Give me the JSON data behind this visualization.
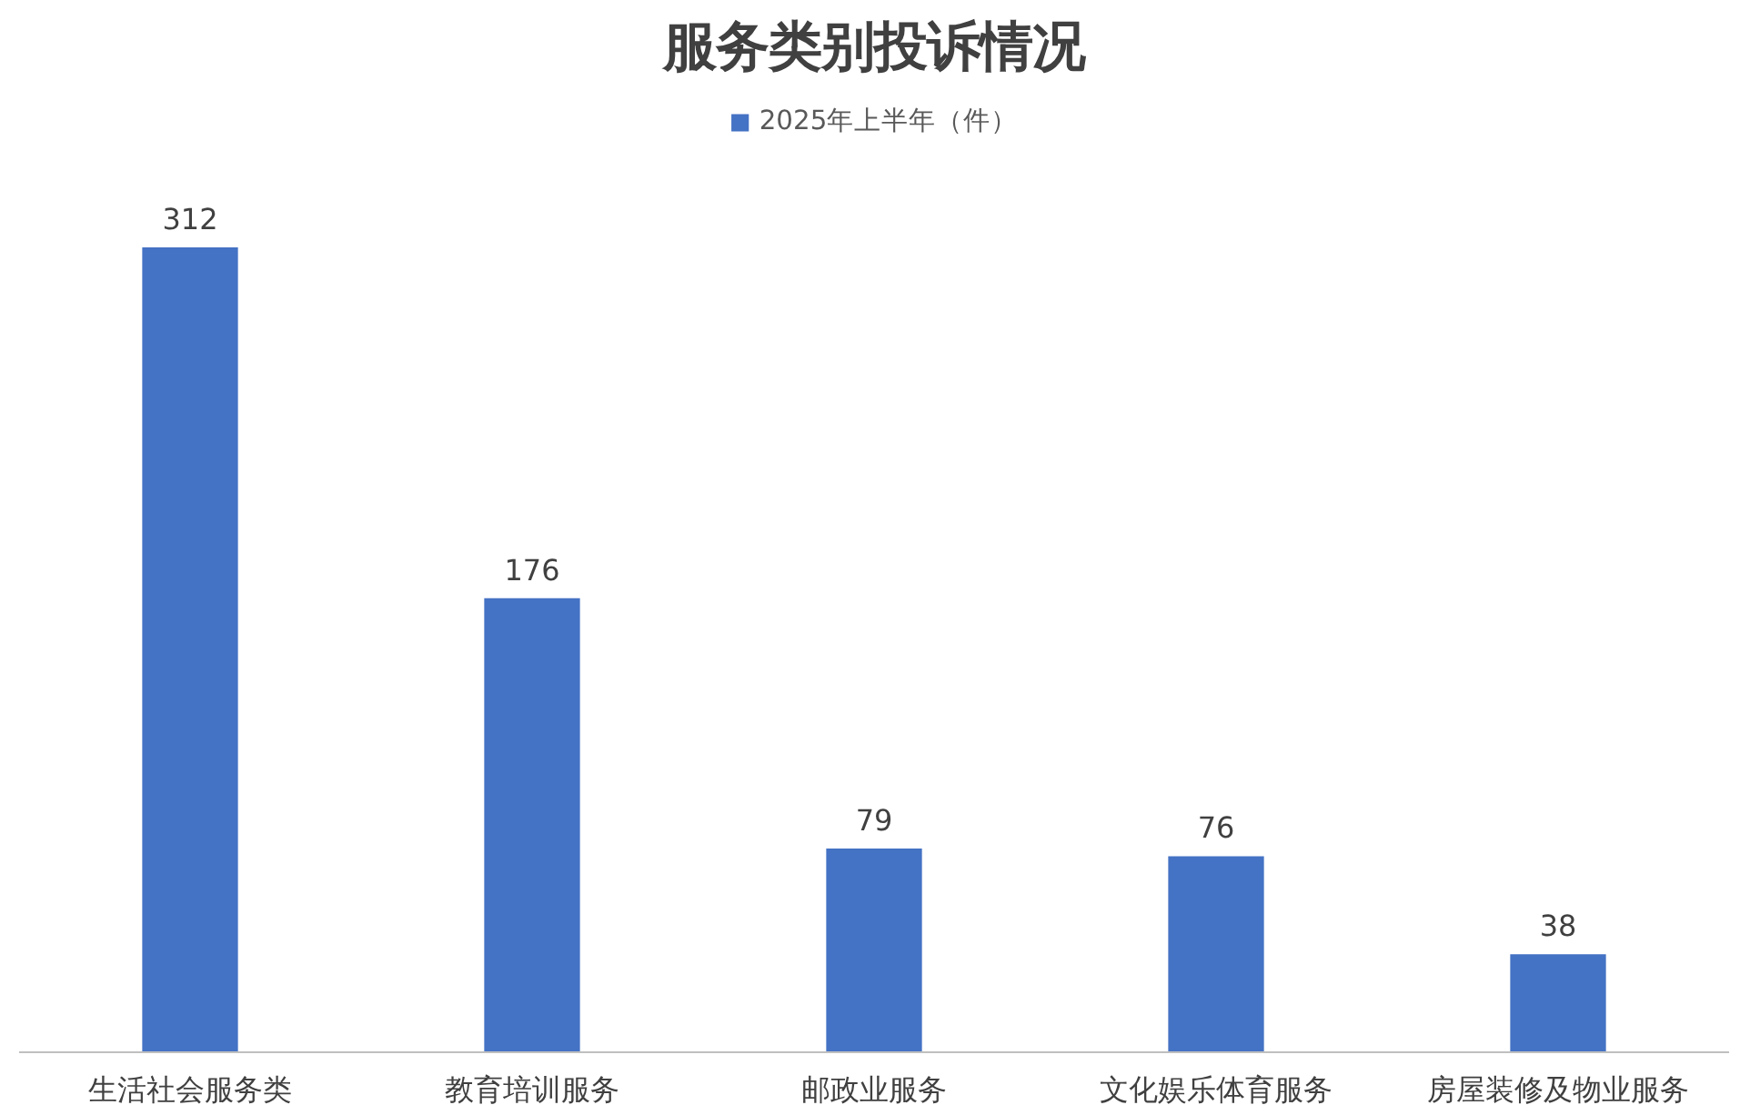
{
  "chart_data": {
    "type": "bar",
    "title": "服务类别投诉情况",
    "categories": [
      "生活社会服务类",
      "教育培训服务",
      "邮政业服务",
      "文化娱乐体育服务",
      "房屋装修及物业服务"
    ],
    "series": [
      {
        "name": "2025年上半年（件）",
        "color": "#4472c4",
        "values": [
          312,
          176,
          79,
          76,
          38
        ]
      }
    ],
    "data_labels": true,
    "legend": "top",
    "grid": false
  }
}
